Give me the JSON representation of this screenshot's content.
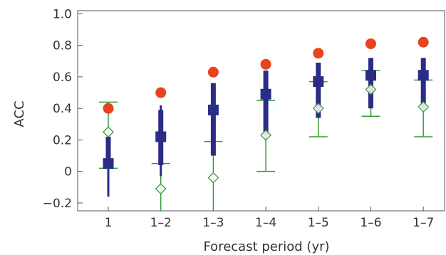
{
  "chart_data": {
    "type": "scatter",
    "xlabel": "Forecast period (yr)",
    "ylabel": "ACC",
    "categories": [
      "1",
      "1–2",
      "1–3",
      "1–4",
      "1–5",
      "1–6",
      "1–7"
    ],
    "ylim": [
      -0.25,
      1.02
    ],
    "yticks": [
      "−0.2",
      "0",
      "0.2",
      "0.4",
      "0.6",
      "0.8",
      "1.0"
    ],
    "ytick_values": [
      -0.2,
      0,
      0.2,
      0.4,
      0.6,
      0.8,
      1.0
    ],
    "grid": false,
    "series": [
      {
        "marker": "circle",
        "color": "#e8431c",
        "values": [
          0.4,
          0.5,
          0.63,
          0.68,
          0.75,
          0.81,
          0.82
        ]
      },
      {
        "marker": "square",
        "color": "#2b2c85",
        "values": [
          0.05,
          0.22,
          0.39,
          0.49,
          0.57,
          0.61,
          0.61
        ],
        "thick_range": [
          [
            0.02,
            0.22
          ],
          [
            0.04,
            0.39
          ],
          [
            0.1,
            0.56
          ],
          [
            0.23,
            0.64
          ],
          [
            0.34,
            0.69
          ],
          [
            0.4,
            0.72
          ],
          [
            0.4,
            0.72
          ]
        ],
        "thin_range": [
          [
            -0.16,
            0.23
          ],
          [
            -0.03,
            0.42
          ],
          [
            0.1,
            0.56
          ],
          [
            0.2,
            0.64
          ],
          [
            0.34,
            0.69
          ],
          [
            0.4,
            0.72
          ],
          [
            0.4,
            0.72
          ]
        ]
      },
      {
        "marker": "diamond",
        "color": "#3a9a3a",
        "values": [
          0.25,
          -0.11,
          -0.04,
          0.23,
          0.4,
          0.52,
          0.41
        ],
        "range": [
          [
            0.02,
            0.44
          ],
          [
            -0.25,
            0.05
          ],
          [
            -0.25,
            0.19
          ],
          [
            0.0,
            0.45
          ],
          [
            0.22,
            0.57
          ],
          [
            0.35,
            0.64
          ],
          [
            0.22,
            0.58
          ]
        ]
      }
    ]
  }
}
